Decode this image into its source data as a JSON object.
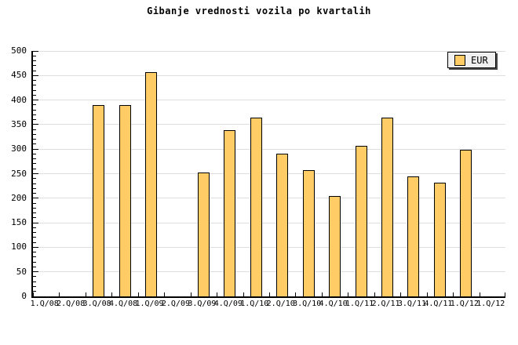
{
  "title": "Gibanje vrednosti vozila po kvartalih",
  "legend": {
    "label": "EUR",
    "position": "top-right"
  },
  "colors": {
    "bar_fill": "#ffcc66",
    "bar_border": "#000000",
    "gridline": "#dedede",
    "axis": "#000000",
    "background": "#ffffff",
    "legend_background": "#f0f0f0",
    "legend_shadow": "#4a4a4a",
    "text": "#000000"
  },
  "chart_data": {
    "type": "bar",
    "title": "Gibanje vrednosti vozila po kvartalih",
    "categories": [
      "1.Q/08",
      "2.Q/08",
      "3.Q/08",
      "4.Q/08",
      "1.Q/09",
      "2.Q/09",
      "3.Q/09",
      "4.Q/09",
      "1.Q/10",
      "2.Q/10",
      "3.Q/10",
      "4.Q/10",
      "1.Q/11",
      "2.Q/11",
      "3.Q/11",
      "4.Q/11",
      "1.Q/12",
      "1.Q/12"
    ],
    "series": [
      {
        "name": "EUR",
        "values": [
          null,
          null,
          390,
          390,
          457,
          null,
          253,
          339,
          364,
          291,
          257,
          205,
          306,
          364,
          245,
          231,
          299,
          null
        ]
      }
    ],
    "xlabel": "",
    "ylabel": "",
    "ylim": [
      0,
      500
    ],
    "y_ticks": [
      0,
      50,
      100,
      150,
      200,
      250,
      300,
      350,
      400,
      450,
      500
    ],
    "y_minor_tick_step": 10,
    "grid": "horizontal",
    "legend_position": "top-right"
  }
}
